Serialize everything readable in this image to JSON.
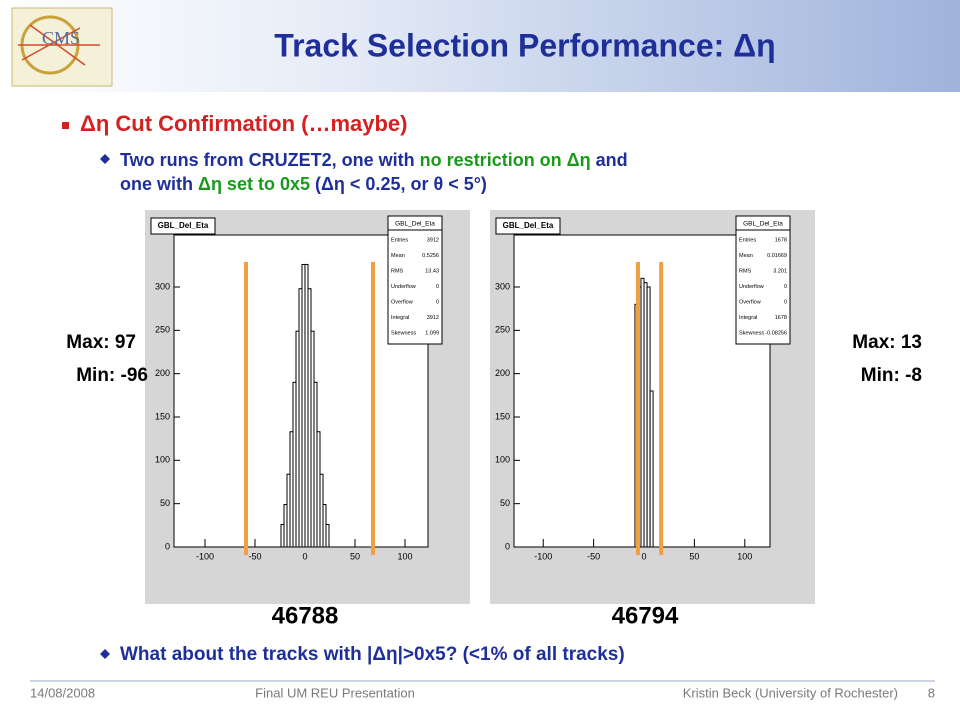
{
  "header": {
    "title": "Track Selection Performance: Δη"
  },
  "bullet": "Δη Cut Confirmation (…maybe)",
  "sub_bullet": [
    {
      "text": "Two runs from CRUZET2, one with ",
      "color": "#1f2f99"
    },
    {
      "text": "no restriction on Δη",
      "color": "#1a9a1a"
    },
    {
      "text": " and",
      "color": "#1f2f99"
    },
    {
      "text": "one with ",
      "color": "#1f2f99"
    },
    {
      "text": "Δη set to 0x5",
      "color": "#1a9a1a"
    },
    {
      "text": " (Δη < 0.25, or θ < 5°)",
      "color": "#1f2f99"
    }
  ],
  "plots": [
    {
      "title": "GBL_Del_Eta",
      "run": "46788",
      "max_label": "Max: 97",
      "min_label": "Min: -96",
      "stats": [
        [
          "Entries",
          "3912"
        ],
        [
          "Mean",
          "0.5256"
        ],
        [
          "RMS",
          "13.43"
        ],
        [
          "Underflow",
          "0"
        ],
        [
          "Overflow",
          "0"
        ],
        [
          "Integral",
          "3912"
        ],
        [
          "Skewness",
          "1.099"
        ]
      ],
      "xlim": [
        -131,
        123
      ],
      "ylim": [
        0,
        360
      ],
      "xticks": [
        -100,
        -50,
        0,
        50,
        100
      ],
      "yticks": [
        0,
        50,
        100,
        150,
        200,
        250,
        300
      ],
      "bins": [
        -24,
        -21,
        -18,
        -15,
        -12,
        -9,
        -6,
        -3,
        0,
        3,
        6,
        9,
        12,
        15,
        18,
        21,
        24
      ],
      "counts": [
        26,
        49,
        84,
        133,
        190,
        249,
        298,
        326,
        326,
        298,
        249,
        190,
        133,
        84,
        49,
        26
      ],
      "cuts": [
        -59,
        68
      ],
      "cut_color": "#f0a040"
    },
    {
      "title": "GBL_Del_Eta",
      "run": "46794",
      "max_label": "Max: 13",
      "min_label": "Min: -8",
      "stats": [
        [
          "Entries",
          "1678"
        ],
        [
          "Mean",
          "0.01669"
        ],
        [
          "RMS",
          "3.201"
        ],
        [
          "Underflow",
          "0"
        ],
        [
          "Overflow",
          "0"
        ],
        [
          "Integral",
          "1678"
        ],
        [
          "Skewness",
          "-0.08256"
        ]
      ],
      "xlim": [
        -129,
        125
      ],
      "ylim": [
        0,
        360
      ],
      "xticks": [
        -100,
        -50,
        0,
        50,
        100
      ],
      "yticks": [
        0,
        50,
        100,
        150,
        200,
        250,
        300
      ],
      "bins": [
        -9,
        -6,
        -3,
        0,
        3,
        6,
        9
      ],
      "counts": [
        280,
        300,
        310,
        305,
        300,
        180
      ],
      "cuts": [
        -6,
        17
      ],
      "cut_color": "#f0a040"
    }
  ],
  "bottom_bullet": "What about the tracks with |Δη|>0x5?  (<1% of all tracks)",
  "footer": {
    "date": "14/08/2008",
    "event": "Final UM REU Presentation",
    "author": "Kristin Beck (University of Rochester)",
    "page": "8"
  }
}
